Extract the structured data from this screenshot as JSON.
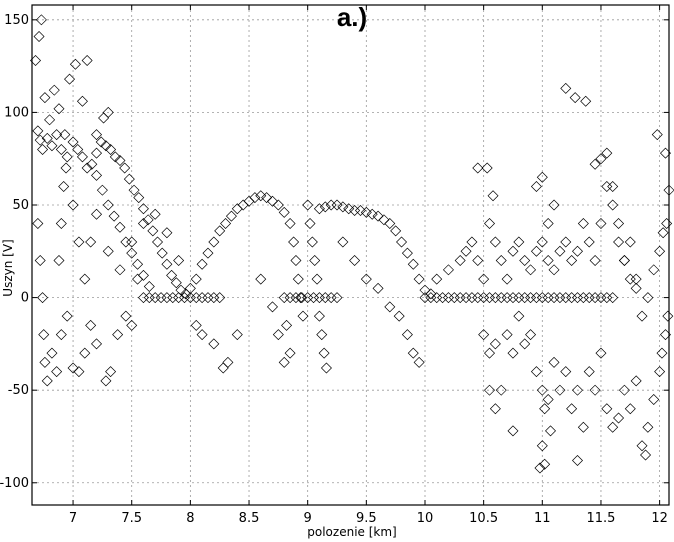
{
  "chart_data": {
    "type": "scatter",
    "title": "a.)",
    "xlabel": "polozenie [km]",
    "ylabel": "Uszyn [V]",
    "xlim": [
      6.65,
      12.08
    ],
    "ylim": [
      -112,
      158
    ],
    "xticks": [
      7,
      7.5,
      8,
      8.5,
      9,
      9.5,
      10,
      10.5,
      11,
      11.5,
      12
    ],
    "xtick_labels": [
      "7",
      "7.5",
      "8",
      "8.5",
      "9",
      "9.5",
      "10",
      "10.5",
      "11",
      "11.5",
      "12"
    ],
    "yticks": [
      -100,
      -50,
      0,
      50,
      100,
      150
    ],
    "ytick_labels": [
      "-100",
      "-50",
      "0",
      "50",
      "100",
      "150"
    ],
    "grid": true,
    "marker": "diamond-open",
    "marker_color": "#000000",
    "series": [
      {
        "values": [
          [
            6.68,
            128
          ],
          [
            6.71,
            141
          ],
          [
            6.73,
            150
          ],
          [
            6.76,
            108
          ],
          [
            6.8,
            96
          ],
          [
            6.84,
            112
          ],
          [
            6.88,
            102
          ],
          [
            6.93,
            88
          ],
          [
            6.97,
            118
          ],
          [
            7.02,
            126
          ],
          [
            7.08,
            106
          ],
          [
            7.12,
            128
          ],
          [
            7.2,
            88
          ],
          [
            7.26,
            97
          ],
          [
            7.3,
            100
          ],
          [
            6.7,
            90
          ],
          [
            6.72,
            85
          ],
          [
            6.74,
            80
          ],
          [
            6.78,
            86
          ],
          [
            6.82,
            82
          ],
          [
            6.86,
            88
          ],
          [
            6.9,
            80
          ],
          [
            6.95,
            76
          ],
          [
            7.0,
            84
          ],
          [
            7.04,
            80
          ],
          [
            7.08,
            76
          ],
          [
            7.12,
            70
          ],
          [
            7.16,
            72
          ],
          [
            7.2,
            78
          ],
          [
            7.24,
            84
          ],
          [
            7.28,
            82
          ],
          [
            7.32,
            80
          ],
          [
            7.36,
            76
          ],
          [
            7.4,
            74
          ],
          [
            7.44,
            70
          ],
          [
            7.48,
            64
          ],
          [
            7.52,
            58
          ],
          [
            7.56,
            54
          ],
          [
            7.6,
            48
          ],
          [
            7.64,
            42
          ],
          [
            7.68,
            36
          ],
          [
            7.72,
            30
          ],
          [
            7.76,
            24
          ],
          [
            7.8,
            18
          ],
          [
            7.84,
            12
          ],
          [
            7.88,
            8
          ],
          [
            7.92,
            4
          ],
          [
            7.96,
            2
          ],
          [
            7.2,
            66
          ],
          [
            7.25,
            58
          ],
          [
            7.3,
            50
          ],
          [
            7.35,
            44
          ],
          [
            7.4,
            38
          ],
          [
            7.45,
            30
          ],
          [
            7.5,
            24
          ],
          [
            7.55,
            18
          ],
          [
            7.6,
            12
          ],
          [
            7.65,
            6
          ],
          [
            6.7,
            40
          ],
          [
            6.72,
            20
          ],
          [
            6.74,
            0
          ],
          [
            6.75,
            -20
          ],
          [
            6.76,
            -35
          ],
          [
            6.78,
            -45
          ],
          [
            6.82,
            -30
          ],
          [
            6.86,
            -40
          ],
          [
            6.9,
            -20
          ],
          [
            6.95,
            -10
          ],
          [
            7.0,
            -38
          ],
          [
            7.05,
            -40
          ],
          [
            7.1,
            -30
          ],
          [
            7.15,
            -15
          ],
          [
            7.2,
            -25
          ],
          [
            7.28,
            -45
          ],
          [
            7.32,
            -40
          ],
          [
            7.38,
            -20
          ],
          [
            7.45,
            -10
          ],
          [
            7.5,
            -15
          ],
          [
            7.55,
            10
          ],
          [
            6.88,
            20
          ],
          [
            6.9,
            40
          ],
          [
            6.92,
            60
          ],
          [
            6.94,
            70
          ],
          [
            7.0,
            50
          ],
          [
            7.05,
            30
          ],
          [
            7.1,
            10
          ],
          [
            7.15,
            30
          ],
          [
            7.2,
            45
          ],
          [
            7.3,
            25
          ],
          [
            7.4,
            15
          ],
          [
            7.5,
            30
          ],
          [
            7.6,
            40
          ],
          [
            7.7,
            45
          ],
          [
            7.8,
            35
          ],
          [
            7.9,
            20
          ],
          [
            7.6,
            0
          ],
          [
            7.65,
            0
          ],
          [
            7.7,
            0
          ],
          [
            7.75,
            0
          ],
          [
            7.8,
            0
          ],
          [
            7.85,
            0
          ],
          [
            7.9,
            0
          ],
          [
            7.95,
            0
          ],
          [
            8.0,
            0
          ],
          [
            8.05,
            0
          ],
          [
            8.1,
            0
          ],
          [
            8.15,
            0
          ],
          [
            8.2,
            0
          ],
          [
            8.25,
            0
          ],
          [
            8.0,
            5
          ],
          [
            8.05,
            10
          ],
          [
            8.1,
            18
          ],
          [
            8.15,
            24
          ],
          [
            8.2,
            30
          ],
          [
            8.25,
            36
          ],
          [
            8.3,
            40
          ],
          [
            8.35,
            44
          ],
          [
            8.4,
            48
          ],
          [
            8.45,
            50
          ],
          [
            8.5,
            52
          ],
          [
            8.55,
            54
          ],
          [
            8.6,
            55
          ],
          [
            8.65,
            54
          ],
          [
            8.7,
            52
          ],
          [
            8.75,
            50
          ],
          [
            8.8,
            46
          ],
          [
            8.85,
            40
          ],
          [
            8.88,
            30
          ],
          [
            8.9,
            20
          ],
          [
            8.92,
            10
          ],
          [
            8.94,
            0
          ],
          [
            8.96,
            -10
          ],
          [
            8.05,
            -15
          ],
          [
            8.1,
            -20
          ],
          [
            8.2,
            -25
          ],
          [
            8.28,
            -38
          ],
          [
            8.32,
            -35
          ],
          [
            8.4,
            -20
          ],
          [
            8.6,
            10
          ],
          [
            8.7,
            -5
          ],
          [
            8.75,
            -20
          ],
          [
            8.8,
            -35
          ],
          [
            8.85,
            -30
          ],
          [
            8.82,
            -15
          ],
          [
            8.8,
            0
          ],
          [
            8.85,
            0
          ],
          [
            8.9,
            0
          ],
          [
            8.95,
            0
          ],
          [
            9.0,
            0
          ],
          [
            9.05,
            0
          ],
          [
            9.1,
            0
          ],
          [
            9.15,
            0
          ],
          [
            9.2,
            0
          ],
          [
            9.25,
            0
          ],
          [
            9.0,
            50
          ],
          [
            9.02,
            40
          ],
          [
            9.04,
            30
          ],
          [
            9.06,
            20
          ],
          [
            9.08,
            10
          ],
          [
            9.1,
            -10
          ],
          [
            9.12,
            -20
          ],
          [
            9.14,
            -30
          ],
          [
            9.16,
            -38
          ],
          [
            9.1,
            48
          ],
          [
            9.15,
            49
          ],
          [
            9.2,
            50
          ],
          [
            9.25,
            50
          ],
          [
            9.3,
            49
          ],
          [
            9.35,
            48
          ],
          [
            9.4,
            47
          ],
          [
            9.45,
            47
          ],
          [
            9.5,
            46
          ],
          [
            9.55,
            45
          ],
          [
            9.6,
            44
          ],
          [
            9.65,
            42
          ],
          [
            9.7,
            40
          ],
          [
            9.75,
            36
          ],
          [
            9.8,
            30
          ],
          [
            9.85,
            24
          ],
          [
            9.9,
            18
          ],
          [
            9.95,
            10
          ],
          [
            10.0,
            4
          ],
          [
            10.05,
            2
          ],
          [
            9.3,
            30
          ],
          [
            9.4,
            20
          ],
          [
            9.5,
            10
          ],
          [
            9.6,
            5
          ],
          [
            9.7,
            -5
          ],
          [
            9.78,
            -10
          ],
          [
            9.85,
            -20
          ],
          [
            9.9,
            -30
          ],
          [
            9.95,
            -35
          ],
          [
            10.0,
            0
          ],
          [
            10.05,
            0
          ],
          [
            10.1,
            0
          ],
          [
            10.15,
            0
          ],
          [
            10.2,
            0
          ],
          [
            10.25,
            0
          ],
          [
            10.3,
            0
          ],
          [
            10.35,
            0
          ],
          [
            10.4,
            0
          ],
          [
            10.45,
            0
          ],
          [
            10.5,
            0
          ],
          [
            10.55,
            0
          ],
          [
            10.6,
            0
          ],
          [
            10.65,
            0
          ],
          [
            10.7,
            0
          ],
          [
            10.75,
            0
          ],
          [
            10.8,
            0
          ],
          [
            10.85,
            0
          ],
          [
            10.9,
            0
          ],
          [
            10.95,
            0
          ],
          [
            11.0,
            0
          ],
          [
            11.05,
            0
          ],
          [
            11.1,
            0
          ],
          [
            11.15,
            0
          ],
          [
            11.2,
            0
          ],
          [
            11.25,
            0
          ],
          [
            11.3,
            0
          ],
          [
            11.35,
            0
          ],
          [
            11.4,
            0
          ],
          [
            11.45,
            0
          ],
          [
            11.5,
            0
          ],
          [
            11.55,
            0
          ],
          [
            11.6,
            0
          ],
          [
            10.1,
            10
          ],
          [
            10.2,
            15
          ],
          [
            10.3,
            20
          ],
          [
            10.35,
            25
          ],
          [
            10.4,
            30
          ],
          [
            10.45,
            20
          ],
          [
            10.5,
            10
          ],
          [
            10.55,
            40
          ],
          [
            10.6,
            30
          ],
          [
            10.65,
            20
          ],
          [
            10.7,
            10
          ],
          [
            10.75,
            25
          ],
          [
            10.8,
            30
          ],
          [
            10.85,
            20
          ],
          [
            10.9,
            15
          ],
          [
            10.95,
            25
          ],
          [
            11.0,
            30
          ],
          [
            11.05,
            20
          ],
          [
            11.1,
            15
          ],
          [
            11.15,
            25
          ],
          [
            11.2,
            30
          ],
          [
            11.25,
            20
          ],
          [
            11.3,
            25
          ],
          [
            11.35,
            40
          ],
          [
            11.4,
            30
          ],
          [
            11.45,
            20
          ],
          [
            11.5,
            40
          ],
          [
            11.55,
            60
          ],
          [
            11.6,
            50
          ],
          [
            11.65,
            30
          ],
          [
            11.7,
            20
          ],
          [
            11.75,
            10
          ],
          [
            11.8,
            5
          ],
          [
            10.45,
            70
          ],
          [
            10.53,
            70
          ],
          [
            10.58,
            55
          ],
          [
            10.95,
            60
          ],
          [
            11.0,
            65
          ],
          [
            11.05,
            40
          ],
          [
            11.1,
            50
          ],
          [
            11.2,
            113
          ],
          [
            11.28,
            108
          ],
          [
            11.37,
            106
          ],
          [
            11.45,
            72
          ],
          [
            11.5,
            75
          ],
          [
            11.55,
            78
          ],
          [
            11.6,
            60
          ],
          [
            11.65,
            40
          ],
          [
            11.98,
            88
          ],
          [
            12.05,
            78
          ],
          [
            12.08,
            58
          ],
          [
            10.5,
            -20
          ],
          [
            10.55,
            -30
          ],
          [
            10.6,
            -25
          ],
          [
            10.65,
            -50
          ],
          [
            10.6,
            -60
          ],
          [
            10.55,
            -50
          ],
          [
            10.7,
            -20
          ],
          [
            10.75,
            -30
          ],
          [
            10.8,
            -10
          ],
          [
            10.85,
            -25
          ],
          [
            10.9,
            -20
          ],
          [
            10.95,
            -40
          ],
          [
            11.0,
            -50
          ],
          [
            11.02,
            -60
          ],
          [
            11.05,
            -55
          ],
          [
            11.0,
            -80
          ],
          [
            11.02,
            -90
          ],
          [
            10.98,
            -92
          ],
          [
            11.1,
            -35
          ],
          [
            11.15,
            -50
          ],
          [
            11.2,
            -40
          ],
          [
            11.25,
            -60
          ],
          [
            11.3,
            -50
          ],
          [
            11.35,
            -70
          ],
          [
            11.3,
            -88
          ],
          [
            11.4,
            -40
          ],
          [
            11.45,
            -50
          ],
          [
            11.5,
            -30
          ],
          [
            11.55,
            -60
          ],
          [
            11.6,
            -70
          ],
          [
            11.65,
            -65
          ],
          [
            11.7,
            -50
          ],
          [
            11.75,
            -60
          ],
          [
            11.8,
            -45
          ],
          [
            11.85,
            -80
          ],
          [
            11.88,
            -85
          ],
          [
            11.9,
            -70
          ],
          [
            11.95,
            -55
          ],
          [
            12.0,
            -40
          ],
          [
            12.02,
            -30
          ],
          [
            12.05,
            -20
          ],
          [
            12.07,
            -10
          ],
          [
            10.75,
            -72
          ],
          [
            11.07,
            -72
          ],
          [
            11.7,
            20
          ],
          [
            11.75,
            30
          ],
          [
            11.8,
            10
          ],
          [
            11.85,
            -10
          ],
          [
            11.9,
            0
          ],
          [
            11.95,
            15
          ],
          [
            12.0,
            25
          ],
          [
            12.03,
            35
          ],
          [
            12.06,
            40
          ]
        ]
      }
    ]
  }
}
